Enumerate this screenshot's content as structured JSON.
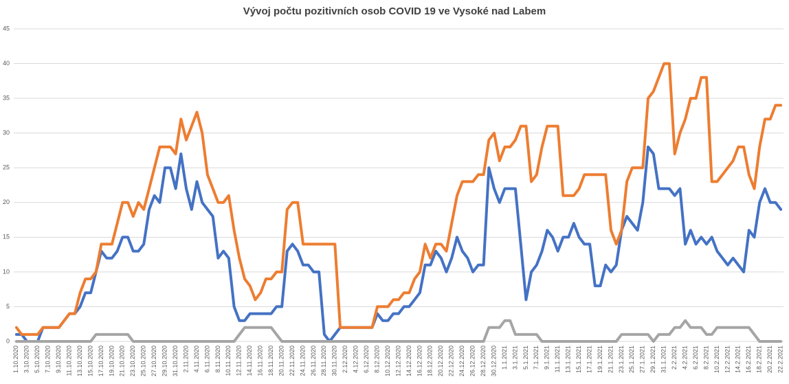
{
  "chart_data": {
    "type": "line",
    "title": "Vývoj počtu pozitivních osob COVID 19 ve Vysoké nad Labem",
    "categories": [
      "1.10.2020",
      null,
      "3.10.2020",
      null,
      "5.10.2020",
      null,
      "7.10.2020",
      null,
      "9.10.2020",
      null,
      "11.10.2020",
      null,
      "13.10.2020",
      null,
      "15.10.2020",
      null,
      "17.10.2020",
      null,
      "19.10.2020",
      null,
      "21.10.2020",
      null,
      "23.10.2020",
      null,
      "25.10.2020",
      null,
      "27.10.2020",
      null,
      "29.10.2020",
      null,
      "31.10.2020",
      null,
      "2.11.2020",
      null,
      "4.11.2020",
      null,
      "6.11.2020",
      null,
      "8.11.2020",
      null,
      "10.11.2020",
      null,
      "12.11.2020",
      null,
      "14.11.2020",
      null,
      "16.11.2020",
      null,
      "18.11.2020",
      null,
      "20.11.2020",
      null,
      "22.11.2020",
      null,
      "24.11.2020",
      null,
      "26.11.2020",
      null,
      "28.11.2020",
      null,
      "30.11.2020",
      null,
      "2.12.2020",
      null,
      "4.12.2020",
      null,
      "6.12.2020",
      null,
      "8.12.2020",
      null,
      "10.12.2020",
      null,
      "12.12.2020",
      null,
      "14.12.2020",
      null,
      "16.12.2020",
      null,
      "18.12.2020",
      null,
      "20.12.2020",
      null,
      "22.12.2020",
      null,
      "24.12.2020",
      null,
      "26.12.2020",
      null,
      "28.12.2020",
      null,
      "30.12.2020",
      null,
      "1.1.2021",
      null,
      "3.1.2021",
      null,
      "5.1.2021",
      null,
      "7.1.2021",
      null,
      "9.1.2021",
      null,
      "11.1.2021",
      null,
      "13.1.2021",
      null,
      "15.1.2021",
      null,
      "17.1.2021",
      null,
      "19.1.2021",
      null,
      "21.1.2021",
      null,
      "23.1.2021",
      null,
      "25.1.2021",
      null,
      "27.1.2021",
      null,
      "29.1.2021",
      null,
      "31.1.2021",
      null,
      "2.2.2021",
      null,
      "4.2.2021",
      null,
      "6.2.2021",
      null,
      "8.2.2021",
      null,
      "10.2.2021",
      null,
      "12.2.2021",
      null,
      "14.2.2021",
      null,
      "16.2.2021",
      null,
      "18.2.2021",
      null,
      "20.2.2021",
      null,
      "22.2.2021"
    ],
    "series": [
      {
        "color": "#4472c4",
        "values": [
          1,
          1,
          0,
          0,
          0,
          2,
          2,
          2,
          2,
          3,
          4,
          4,
          5,
          7,
          7,
          10,
          13,
          12,
          12,
          13,
          15,
          15,
          13,
          13,
          14,
          19,
          21,
          20,
          25,
          25,
          22,
          27,
          22,
          19,
          23,
          20,
          19,
          18,
          12,
          13,
          12,
          5,
          3,
          3,
          4,
          4,
          4,
          4,
          4,
          5,
          5,
          13,
          14,
          13,
          11,
          11,
          10,
          10,
          1,
          0,
          1,
          2,
          2,
          2,
          2,
          2,
          2,
          2,
          4,
          3,
          3,
          4,
          4,
          5,
          5,
          6,
          7,
          11,
          11,
          13,
          12,
          10,
          12,
          15,
          13,
          12,
          10,
          11,
          11,
          25,
          22,
          20,
          22,
          22,
          22,
          14,
          6,
          10,
          11,
          13,
          16,
          15,
          13,
          15,
          15,
          17,
          15,
          14,
          14,
          8,
          8,
          11,
          10,
          11,
          16,
          18,
          17,
          16,
          20,
          28,
          27,
          22,
          22,
          22,
          21,
          22,
          14,
          16,
          14,
          15,
          14,
          15,
          13,
          12,
          11,
          12,
          11,
          10,
          16,
          15,
          20,
          22,
          20,
          20,
          19
        ]
      },
      {
        "color": "#ed7d31",
        "values": [
          2,
          1,
          1,
          1,
          1,
          2,
          2,
          2,
          2,
          3,
          4,
          4,
          7,
          9,
          9,
          10,
          14,
          14,
          14,
          17,
          20,
          20,
          18,
          20,
          19,
          22,
          25,
          28,
          28,
          28,
          27,
          32,
          29,
          31,
          33,
          30,
          24,
          22,
          20,
          20,
          21,
          16,
          12,
          9,
          8,
          6,
          7,
          9,
          9,
          10,
          10,
          19,
          20,
          20,
          14,
          14,
          14,
          14,
          14,
          14,
          14,
          2,
          2,
          2,
          2,
          2,
          2,
          2,
          5,
          5,
          5,
          6,
          6,
          7,
          7,
          9,
          10,
          14,
          12,
          14,
          14,
          13,
          17,
          21,
          23,
          23,
          23,
          24,
          24,
          29,
          30,
          26,
          28,
          28,
          29,
          31,
          31,
          23,
          24,
          28,
          31,
          31,
          31,
          21,
          21,
          21,
          22,
          24,
          24,
          24,
          24,
          24,
          16,
          14,
          16,
          23,
          25,
          25,
          25,
          35,
          36,
          38,
          40,
          40,
          27,
          30,
          32,
          35,
          35,
          38,
          38,
          23,
          23,
          24,
          25,
          26,
          28,
          28,
          24,
          22,
          28,
          32,
          32,
          34,
          34
        ]
      },
      {
        "color": "#a5a5a5",
        "values": [
          0,
          0,
          0,
          0,
          0,
          0,
          0,
          0,
          0,
          0,
          0,
          0,
          0,
          0,
          0,
          1,
          1,
          1,
          1,
          1,
          1,
          1,
          0,
          0,
          0,
          0,
          0,
          0,
          0,
          0,
          0,
          0,
          0,
          0,
          0,
          0,
          0,
          0,
          0,
          0,
          0,
          0,
          1,
          2,
          2,
          2,
          2,
          2,
          2,
          1,
          0,
          0,
          0,
          0,
          0,
          0,
          0,
          0,
          0,
          0,
          0,
          0,
          0,
          0,
          0,
          0,
          0,
          0,
          0,
          0,
          0,
          0,
          0,
          0,
          0,
          0,
          0,
          0,
          0,
          0,
          0,
          0,
          0,
          0,
          0,
          0,
          0,
          0,
          0,
          2,
          2,
          2,
          3,
          3,
          1,
          1,
          1,
          1,
          1,
          0,
          0,
          0,
          0,
          0,
          0,
          0,
          0,
          0,
          0,
          0,
          0,
          0,
          0,
          0,
          1,
          1,
          1,
          1,
          1,
          1,
          0,
          1,
          1,
          1,
          2,
          2,
          3,
          2,
          2,
          2,
          1,
          1,
          2,
          2,
          2,
          2,
          2,
          2,
          2,
          1,
          0,
          0,
          0,
          0,
          0
        ]
      }
    ],
    "ylim": [
      0,
      45
    ],
    "yticks": [
      0,
      5,
      10,
      15,
      20,
      25,
      30,
      35,
      40,
      45
    ],
    "grid": true
  }
}
